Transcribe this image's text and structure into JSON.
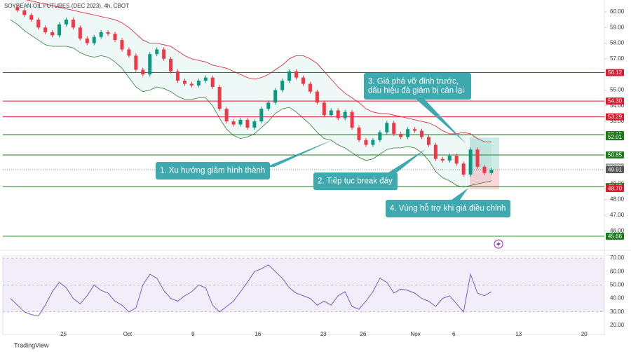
{
  "chart_data": {
    "type": "candlestick",
    "title": "SOYBEAN OIL FUTURES (DEC 2023), 4h, CBOT",
    "footer": "TradingView",
    "up_color": "#089981",
    "down_color": "#f23645",
    "xlim": [
      -1.5,
      85.2
    ],
    "xticks": [
      {
        "value": 7.6,
        "label": "25"
      },
      {
        "value": 16.8,
        "label": "Oct"
      },
      {
        "value": 26.2,
        "label": "9"
      },
      {
        "value": 35.5,
        "label": "16"
      },
      {
        "value": 44.9,
        "label": "23"
      },
      {
        "value": 50.6,
        "label": "26"
      },
      {
        "value": 58.1,
        "label": "Nov"
      },
      {
        "value": 63.6,
        "label": "6"
      },
      {
        "value": 72.9,
        "label": "13"
      },
      {
        "value": 82.3,
        "label": "20"
      }
    ],
    "ylim": [
      44.8,
      60.76
    ],
    "yticks": [
      {
        "value": 60,
        "label": "60.00"
      },
      {
        "value": 59,
        "label": "59.00"
      },
      {
        "value": 58,
        "label": "58.00"
      },
      {
        "value": 57,
        "label": "57.00"
      },
      {
        "value": 55,
        "label": "55.00"
      },
      {
        "value": 54,
        "label": "54.00"
      },
      {
        "value": 53,
        "label": "53.00"
      },
      {
        "value": 49,
        "label": "49.00"
      },
      {
        "value": 48,
        "label": "48.00"
      },
      {
        "value": 47,
        "label": "47.00"
      },
      {
        "value": 46,
        "label": "46.00"
      }
    ],
    "close": [
      60.3,
      60.1,
      59.8,
      59.5,
      59.0,
      58.7,
      58.5,
      59.2,
      59.5,
      59.0,
      58.3,
      58.0,
      58.4,
      58.7,
      58.6,
      58.2,
      57.6,
      57.2,
      56.3,
      56.0,
      57.3,
      57.6,
      57.0,
      56.2,
      55.6,
      55.4,
      55.3,
      55.6,
      55.8,
      55.2,
      53.8,
      53.0,
      52.8,
      53.1,
      52.6,
      53.0,
      53.8,
      54.2,
      55.0,
      55.6,
      56.2,
      55.8,
      55.4,
      54.9,
      54.2,
      53.4,
      53.7,
      53.2,
      53.6,
      52.6,
      51.8,
      51.5,
      51.8,
      52.3,
      52.9,
      52.2,
      52.0,
      52.5,
      52.4,
      52.0,
      51.5,
      50.6,
      50.5,
      50.8,
      50.3,
      49.6,
      51.2,
      50.1,
      49.7,
      49.91
    ],
    "band_upper": [
      61.0,
      60.9,
      60.8,
      60.7,
      60.6,
      60.5,
      60.4,
      60.3,
      60.2,
      60.1,
      60.0,
      59.9,
      59.8,
      59.7,
      59.6,
      59.5,
      59.3,
      59.0,
      58.6,
      58.2,
      58.0,
      58.0,
      57.9,
      57.8,
      57.5,
      57.2,
      57.0,
      56.9,
      56.8,
      56.6,
      56.5,
      56.4,
      56.2,
      56.0,
      55.8,
      55.7,
      55.8,
      56.0,
      56.3,
      56.6,
      57.0,
      57.2,
      57.2,
      57.0,
      56.7,
      56.2,
      55.7,
      55.2,
      54.8,
      54.5,
      54.2,
      53.8,
      53.6,
      53.5,
      53.5,
      53.4,
      53.3,
      53.2,
      53.1,
      53.0,
      52.9,
      52.7,
      52.4,
      52.2,
      52.2,
      52.3,
      52.2,
      51.9,
      51.7,
      51.7
    ],
    "band_lower": [
      59.5,
      59.2,
      58.8,
      58.5,
      58.2,
      57.9,
      57.8,
      57.8,
      57.8,
      57.7,
      57.4,
      57.2,
      57.1,
      57.2,
      57.1,
      56.8,
      56.4,
      55.8,
      55.2,
      54.9,
      55.0,
      55.2,
      55.1,
      54.9,
      54.6,
      54.4,
      54.4,
      54.5,
      54.5,
      54.0,
      53.2,
      52.5,
      52.1,
      51.9,
      52.0,
      52.2,
      52.6,
      53.0,
      53.5,
      53.8,
      53.9,
      53.6,
      53.2,
      52.8,
      52.3,
      51.9,
      51.8,
      51.5,
      51.3,
      51.0,
      50.7,
      50.5,
      50.6,
      50.9,
      51.2,
      51.3,
      51.3,
      51.4,
      51.3,
      51.0,
      50.5,
      49.8,
      49.4,
      49.2,
      48.9,
      48.8,
      48.9,
      49.0,
      49.1,
      49.2
    ],
    "levels": [
      {
        "value": 56.12,
        "color": "#e0182d",
        "line": true
      },
      {
        "value": {
          "value": 54.3,
          "label": "54.30"
        },
        "color": "#e0182d",
        "line": true
      },
      {
        "value": 53.29,
        "color": "#e0182d",
        "line": true
      },
      {
        "value": 52.15,
        "color": "#1b7a1b",
        "line": true
      },
      {
        "value": 52.01,
        "color": "#1b7a1b",
        "line": false
      },
      {
        "value": 50.85,
        "color": "#1b7a1b",
        "line": true
      },
      {
        "value": 50.08,
        "color": "#a0a0a0",
        "line": false
      },
      {
        "value": 49.91,
        "color": "#555555",
        "line": false
      },
      {
        "value": 48.83,
        "color": "#1b7a1b",
        "line": true
      },
      {
        "value": {
          "value": 48.7,
          "label": "48.70"
        },
        "color": "#e0182d",
        "line": false
      },
      {
        "value": 45.66,
        "color": "#1b7a1b",
        "line": true
      }
    ],
    "annotations": [
      {
        "lines": [
          "1. Xu hướng giảm hình thành"
        ]
      },
      {
        "lines": [
          "2. Tiếp tục break đáy"
        ]
      },
      {
        "lines": [
          "3. Giá phá vỡ đỉnh trước,",
          "dấu hiệu đà giảm bị cản lại"
        ]
      },
      {
        "lines": [
          "4. Vùng hỗ trợ khi giá điều chỉnh"
        ]
      }
    ],
    "rsi": {
      "color": "#7e57c2",
      "ylim": [
        12.7,
        71.6
      ],
      "yticks": [
        {
          "value": 70,
          "label": "70.00"
        },
        {
          "value": 60,
          "label": "60.00"
        },
        {
          "value": 50,
          "label": "50.00"
        },
        {
          "value": 40,
          "label": "40.00"
        },
        {
          "value": 30,
          "label": "30.00"
        },
        {
          "value": 20,
          "label": "20.00"
        }
      ],
      "values": [
        40,
        35,
        30,
        28,
        27,
        35,
        45,
        52,
        48,
        40,
        36,
        42,
        50,
        46,
        44,
        38,
        35,
        30,
        33,
        50,
        58,
        55,
        46,
        40,
        38,
        42,
        45,
        50,
        48,
        35,
        30,
        34,
        38,
        45,
        52,
        60,
        62,
        65,
        60,
        55,
        48,
        44,
        42,
        40,
        35,
        38,
        35,
        42,
        45,
        34,
        32,
        38,
        45,
        55,
        52,
        44,
        47,
        46,
        44,
        40,
        38,
        34,
        40,
        42,
        36,
        30,
        58,
        44,
        42,
        45
      ]
    }
  }
}
